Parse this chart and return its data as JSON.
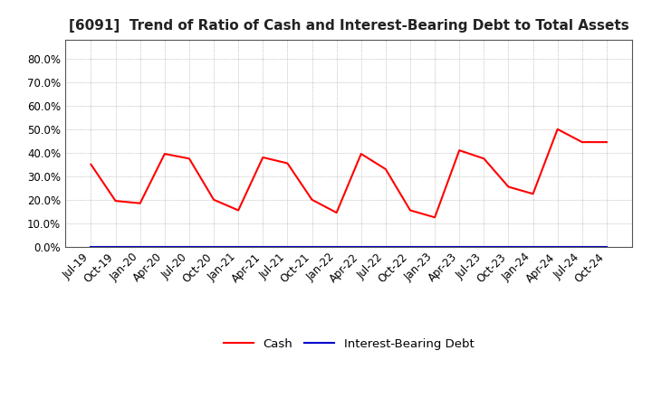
{
  "title": "[6091]  Trend of Ratio of Cash and Interest-Bearing Debt to Total Assets",
  "x_labels": [
    "Jul-19",
    "Oct-19",
    "Jan-20",
    "Apr-20",
    "Jul-20",
    "Oct-20",
    "Jan-21",
    "Apr-21",
    "Jul-21",
    "Oct-21",
    "Jan-22",
    "Apr-22",
    "Jul-22",
    "Oct-22",
    "Jan-23",
    "Apr-23",
    "Jul-23",
    "Oct-23",
    "Jan-24",
    "Apr-24",
    "Jul-24",
    "Oct-24"
  ],
  "cash_values": [
    0.35,
    0.195,
    0.185,
    0.395,
    0.375,
    0.2,
    0.155,
    0.38,
    0.355,
    0.2,
    0.145,
    0.395,
    0.33,
    0.155,
    0.125,
    0.41,
    0.375,
    0.255,
    0.225,
    0.5,
    0.445,
    0.445
  ],
  "debt_values": [
    0.0,
    0.0,
    0.0,
    0.0,
    0.0,
    0.0,
    0.0,
    0.0,
    0.0,
    0.0,
    0.0,
    0.0,
    0.0,
    0.0,
    0.0,
    0.0,
    0.0,
    0.0,
    0.0,
    0.0,
    0.0,
    0.0
  ],
  "cash_color": "#ff0000",
  "debt_color": "#0000cc",
  "background_color": "#ffffff",
  "grid_color": "#aaaaaa",
  "ylim": [
    0.0,
    0.88
  ],
  "yticks": [
    0.0,
    0.1,
    0.2,
    0.3,
    0.4,
    0.5,
    0.6,
    0.7,
    0.8
  ],
  "title_fontsize": 11,
  "tick_fontsize": 8.5,
  "legend_cash": "Cash",
  "legend_debt": "Interest-Bearing Debt",
  "line_width": 1.5
}
